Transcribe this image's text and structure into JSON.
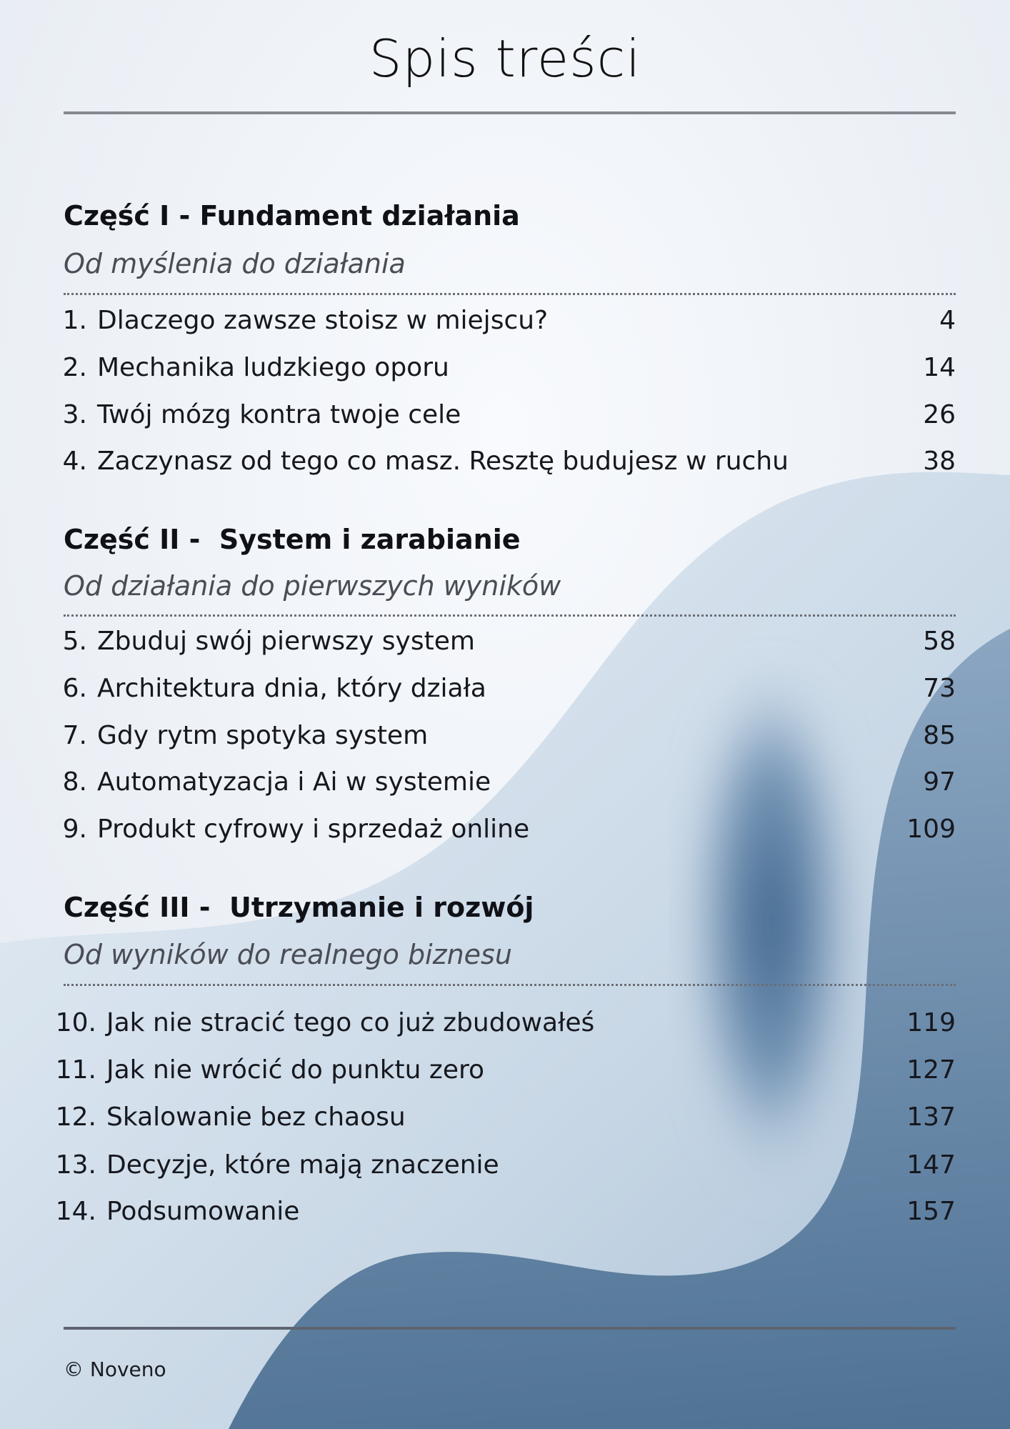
{
  "title": "Spis treści",
  "parts": [
    {
      "heading": "Część I - Fundament działania",
      "subtitle": "Od myślenia do działania",
      "items": [
        {
          "num": "1.",
          "title": "Dlaczego zawsze stoisz w miejscu?",
          "page": "4"
        },
        {
          "num": "2.",
          "title": "Mechanika ludzkiego oporu",
          "page": "14"
        },
        {
          "num": "3.",
          "title": "Twój mózg kontra twoje cele",
          "page": "26"
        },
        {
          "num": "4.",
          "title": "Zaczynasz od tego co masz. Resztę budujesz w ruchu",
          "page": "38"
        }
      ]
    },
    {
      "heading": "Część II -  System i zarabianie",
      "subtitle": "Od działania do pierwszych wyników",
      "items": [
        {
          "num": "5.",
          "title": "Zbuduj swój pierwszy system",
          "page": "58"
        },
        {
          "num": "6.",
          "title": "Architektura dnia, który działa",
          "page": "73"
        },
        {
          "num": "7.",
          "title": "Gdy rytm spotyka system",
          "page": "85"
        },
        {
          "num": "8.",
          "title": "Automatyzacja i Ai w systemie",
          "page": "97"
        },
        {
          "num": "9.",
          "title": "Produkt cyfrowy i sprzedaż online",
          "page": "109"
        }
      ]
    },
    {
      "heading": "Część III -  Utrzymanie i rozwój",
      "subtitle": "Od wyników do realnego biznesu",
      "items": [
        {
          "num": "10.",
          "title": "Jak nie stracić tego co już zbudowałeś",
          "page": "119"
        },
        {
          "num": "11.",
          "title": "Jak nie wrócić do punktu zero",
          "page": "127"
        },
        {
          "num": "12.",
          "title": "Skalowanie bez chaosu",
          "page": "137"
        },
        {
          "num": "13.",
          "title": "Decyzje, które mają znaczenie",
          "page": "147"
        },
        {
          "num": "14.",
          "title": "Podsumowanie",
          "page": "157"
        }
      ]
    }
  ],
  "footer": "© Noveno",
  "colors": {
    "background": "#f1f5fa",
    "accent_blue": "#3d6288",
    "rule": "#86898f"
  }
}
